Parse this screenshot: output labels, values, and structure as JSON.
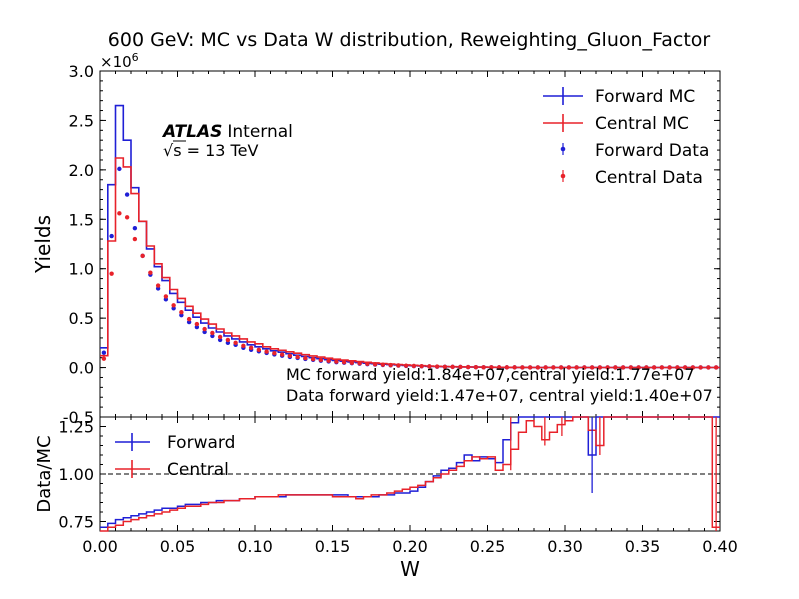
{
  "title": "600 GeV: MC vs Data W distribution, Reweighting_Gluon_Factor",
  "atlas": {
    "label": "ATLAS",
    "status": "Internal",
    "energy_prefix": "√s = ",
    "energy_value": "13 TeV"
  },
  "annotations": {
    "mc_yield": "MC forward yield:1.84e+07,central yield:1.77e+07",
    "data_yield": "Data forward yield:1.47e+07, central yield:1.40e+07"
  },
  "colors": {
    "forward": "#1f1fd6",
    "central": "#e8222a",
    "reference": "#000000"
  },
  "chart_data": [
    {
      "type": "line",
      "panel": "main",
      "title": "600 GeV: MC vs Data W distribution, Reweighting_Gluon_Factor",
      "xlabel": "",
      "ylabel": "Yields",
      "y_multiplier": "×10^6",
      "xlim": [
        0.0,
        0.4
      ],
      "ylim": [
        -0.5,
        3.0
      ],
      "yticks": [
        "-0.5",
        "0.0",
        "0.5",
        "1.0",
        "1.5",
        "2.0",
        "2.5",
        "3.0"
      ],
      "legend_position": "top-right",
      "legend": [
        "Forward MC",
        "Central MC",
        "Forward Data",
        "Central Data"
      ],
      "bin_edges": [
        0.0,
        0.005,
        0.01,
        0.015,
        0.02,
        0.025,
        0.03,
        0.035,
        0.04,
        0.045,
        0.05,
        0.055,
        0.06,
        0.065,
        0.07,
        0.075,
        0.08,
        0.085,
        0.09,
        0.095,
        0.1,
        0.105,
        0.11,
        0.115,
        0.12,
        0.125,
        0.13,
        0.135,
        0.14,
        0.145,
        0.15,
        0.155,
        0.16,
        0.165,
        0.17,
        0.175,
        0.18,
        0.185,
        0.19,
        0.195,
        0.2,
        0.205,
        0.21,
        0.215,
        0.22,
        0.225,
        0.23,
        0.235,
        0.24,
        0.245,
        0.25,
        0.255,
        0.26,
        0.265,
        0.27,
        0.275,
        0.28,
        0.285,
        0.29,
        0.295,
        0.3,
        0.305,
        0.31,
        0.315,
        0.32,
        0.325,
        0.33,
        0.335,
        0.34,
        0.345,
        0.35,
        0.355,
        0.36,
        0.365,
        0.37,
        0.375,
        0.38,
        0.385,
        0.39,
        0.395,
        0.4
      ],
      "series": [
        {
          "name": "Forward MC",
          "style": "step",
          "values": [
            0.2,
            1.85,
            2.65,
            2.3,
            1.82,
            1.48,
            1.2,
            1.02,
            0.88,
            0.75,
            0.66,
            0.58,
            0.51,
            0.45,
            0.4,
            0.36,
            0.32,
            0.29,
            0.26,
            0.23,
            0.21,
            0.19,
            0.17,
            0.155,
            0.14,
            0.125,
            0.112,
            0.1,
            0.09,
            0.08,
            0.072,
            0.064,
            0.057,
            0.05,
            0.044,
            0.039,
            0.034,
            0.03,
            0.026,
            0.022,
            0.019,
            0.016,
            0.013,
            0.011,
            0.009,
            0.008,
            0.007,
            0.006,
            0.005,
            0.004,
            0.003,
            0.003,
            0.002,
            0.002,
            0.002,
            0.001,
            0.001,
            0.001,
            0.001,
            0.001,
            0.001,
            0.001,
            0.001,
            0.001,
            0.001,
            0.001,
            0.001,
            0.001,
            0.001,
            0.001,
            0.001,
            0.001,
            0.001,
            0.001,
            0.001,
            0.001,
            0.001,
            0.001,
            0.001,
            0.001
          ]
        },
        {
          "name": "Central MC",
          "style": "step",
          "values": [
            0.12,
            1.28,
            2.12,
            2.03,
            1.76,
            1.48,
            1.23,
            1.05,
            0.91,
            0.79,
            0.7,
            0.62,
            0.55,
            0.49,
            0.44,
            0.39,
            0.35,
            0.32,
            0.29,
            0.26,
            0.24,
            0.21,
            0.19,
            0.175,
            0.16,
            0.145,
            0.13,
            0.118,
            0.106,
            0.095,
            0.085,
            0.076,
            0.068,
            0.06,
            0.053,
            0.047,
            0.041,
            0.036,
            0.031,
            0.027,
            0.023,
            0.019,
            0.016,
            0.013,
            0.011,
            0.009,
            0.008,
            0.007,
            0.006,
            0.005,
            0.004,
            0.003,
            0.003,
            0.002,
            0.002,
            0.002,
            0.001,
            0.001,
            0.001,
            0.001,
            0.001,
            0.001,
            0.001,
            0.001,
            0.001,
            0.001,
            0.001,
            0.001,
            0.001,
            0.001,
            0.001,
            0.001,
            0.001,
            0.001,
            0.001,
            0.001,
            0.001,
            0.001,
            0.001,
            0.001
          ]
        },
        {
          "name": "Forward Data",
          "style": "points",
          "values": [
            0.15,
            1.33,
            2.01,
            1.75,
            1.41,
            1.13,
            0.94,
            0.8,
            0.69,
            0.6,
            0.53,
            0.46,
            0.41,
            0.36,
            0.32,
            0.28,
            0.25,
            0.23,
            0.2,
            0.18,
            0.165,
            0.148,
            0.133,
            0.12,
            0.108,
            0.097,
            0.087,
            0.078,
            0.07,
            0.062,
            0.055,
            0.049,
            0.044,
            0.039,
            0.034,
            0.03,
            0.026,
            0.023,
            0.02,
            0.017,
            0.015,
            0.013,
            0.011,
            0.009,
            0.008,
            0.007,
            0.006,
            0.005,
            0.004,
            0.003,
            0.003,
            0.002,
            0.002,
            0.002,
            0.001,
            0.001,
            0.001,
            0.001,
            0.001,
            0.001,
            0.001,
            0.001,
            0.001,
            0.001,
            0.001,
            0.001,
            0.001,
            0.001,
            0.001,
            0.001,
            0.001,
            0.001,
            0.001,
            0.001,
            0.001,
            0.001,
            0.001,
            0.001,
            0.001,
            0.001
          ]
        },
        {
          "name": "Central Data",
          "style": "points",
          "values": [
            0.09,
            0.95,
            1.56,
            1.52,
            1.3,
            1.13,
            0.96,
            0.83,
            0.72,
            0.63,
            0.56,
            0.49,
            0.44,
            0.39,
            0.35,
            0.31,
            0.28,
            0.25,
            0.22,
            0.2,
            0.18,
            0.162,
            0.146,
            0.132,
            0.119,
            0.107,
            0.096,
            0.086,
            0.077,
            0.069,
            0.061,
            0.054,
            0.048,
            0.043,
            0.038,
            0.033,
            0.029,
            0.025,
            0.022,
            0.019,
            0.016,
            0.014,
            0.012,
            0.01,
            0.008,
            0.007,
            0.006,
            0.005,
            0.004,
            0.003,
            0.003,
            0.002,
            0.002,
            0.002,
            0.001,
            0.001,
            0.001,
            0.001,
            0.001,
            0.001,
            0.001,
            0.001,
            0.001,
            0.001,
            0.001,
            0.001,
            0.001,
            0.001,
            0.001,
            0.001,
            0.001,
            0.001,
            0.001,
            0.001,
            0.001,
            0.001,
            0.001,
            0.001,
            0.001,
            0.001
          ]
        }
      ]
    },
    {
      "type": "line",
      "panel": "ratio",
      "xlabel": "W",
      "ylabel": "Data/MC",
      "xlim": [
        0.0,
        0.4
      ],
      "ylim": [
        0.7,
        1.3
      ],
      "xticks": [
        "0.00",
        "0.05",
        "0.10",
        "0.15",
        "0.20",
        "0.25",
        "0.30",
        "0.35",
        "0.40"
      ],
      "yticks": [
        "0.75",
        "1.00",
        "1.25"
      ],
      "legend_position": "top-left",
      "legend": [
        "Forward",
        "Central"
      ],
      "reference_line": 1.0,
      "bin_edges": [
        0.0,
        0.005,
        0.01,
        0.015,
        0.02,
        0.025,
        0.03,
        0.035,
        0.04,
        0.045,
        0.05,
        0.055,
        0.06,
        0.065,
        0.07,
        0.075,
        0.08,
        0.085,
        0.09,
        0.095,
        0.1,
        0.105,
        0.11,
        0.115,
        0.12,
        0.125,
        0.13,
        0.135,
        0.14,
        0.145,
        0.15,
        0.155,
        0.16,
        0.165,
        0.17,
        0.175,
        0.18,
        0.185,
        0.19,
        0.195,
        0.2,
        0.205,
        0.21,
        0.215,
        0.22,
        0.225,
        0.23,
        0.235,
        0.24,
        0.245,
        0.25,
        0.255,
        0.26,
        0.265,
        0.27,
        0.275,
        0.28,
        0.285,
        0.29,
        0.295,
        0.3,
        0.305,
        0.31,
        0.315,
        0.32,
        0.325,
        0.33,
        0.335,
        0.34,
        0.345,
        0.35,
        0.355,
        0.36,
        0.365,
        0.37,
        0.375,
        0.38,
        0.385,
        0.39,
        0.395,
        0.4
      ],
      "series": [
        {
          "name": "Forward",
          "style": "step",
          "values": [
            0.72,
            0.74,
            0.76,
            0.77,
            0.78,
            0.79,
            0.8,
            0.81,
            0.82,
            0.82,
            0.83,
            0.84,
            0.84,
            0.85,
            0.85,
            0.86,
            0.86,
            0.86,
            0.87,
            0.87,
            0.88,
            0.88,
            0.88,
            0.88,
            0.89,
            0.89,
            0.89,
            0.89,
            0.89,
            0.89,
            0.89,
            0.89,
            0.88,
            0.88,
            0.88,
            0.88,
            0.89,
            0.89,
            0.9,
            0.9,
            0.91,
            0.93,
            0.96,
            0.99,
            1.02,
            1.03,
            1.06,
            1.1,
            1.07,
            1.09,
            1.08,
            1.06,
            1.18,
            1.27,
            1.3,
            1.3,
            1.3,
            1.3,
            1.3,
            1.3,
            1.3,
            1.3,
            1.3,
            1.1,
            1.3,
            1.3,
            1.3,
            1.3,
            1.3,
            1.3,
            1.3,
            1.3,
            1.3,
            1.3,
            1.3,
            1.3,
            1.3,
            1.3,
            1.3,
            1.3
          ]
        },
        {
          "name": "Central",
          "style": "step",
          "values": [
            0.7,
            0.72,
            0.73,
            0.75,
            0.76,
            0.77,
            0.78,
            0.79,
            0.8,
            0.81,
            0.82,
            0.83,
            0.83,
            0.84,
            0.85,
            0.85,
            0.86,
            0.86,
            0.87,
            0.87,
            0.88,
            0.88,
            0.88,
            0.89,
            0.89,
            0.89,
            0.89,
            0.89,
            0.89,
            0.89,
            0.88,
            0.88,
            0.88,
            0.87,
            0.88,
            0.89,
            0.89,
            0.9,
            0.91,
            0.92,
            0.93,
            0.94,
            0.96,
            0.98,
            1.0,
            1.02,
            1.04,
            1.07,
            1.09,
            1.08,
            1.09,
            1.02,
            1.05,
            1.13,
            1.22,
            1.28,
            1.25,
            1.18,
            1.22,
            1.26,
            1.28,
            1.3,
            1.3,
            1.23,
            1.15,
            1.3,
            1.3,
            1.3,
            1.3,
            1.3,
            1.3,
            1.3,
            1.3,
            1.3,
            1.3,
            1.3,
            1.3,
            1.3,
            1.3,
            0.72
          ]
        }
      ]
    }
  ]
}
